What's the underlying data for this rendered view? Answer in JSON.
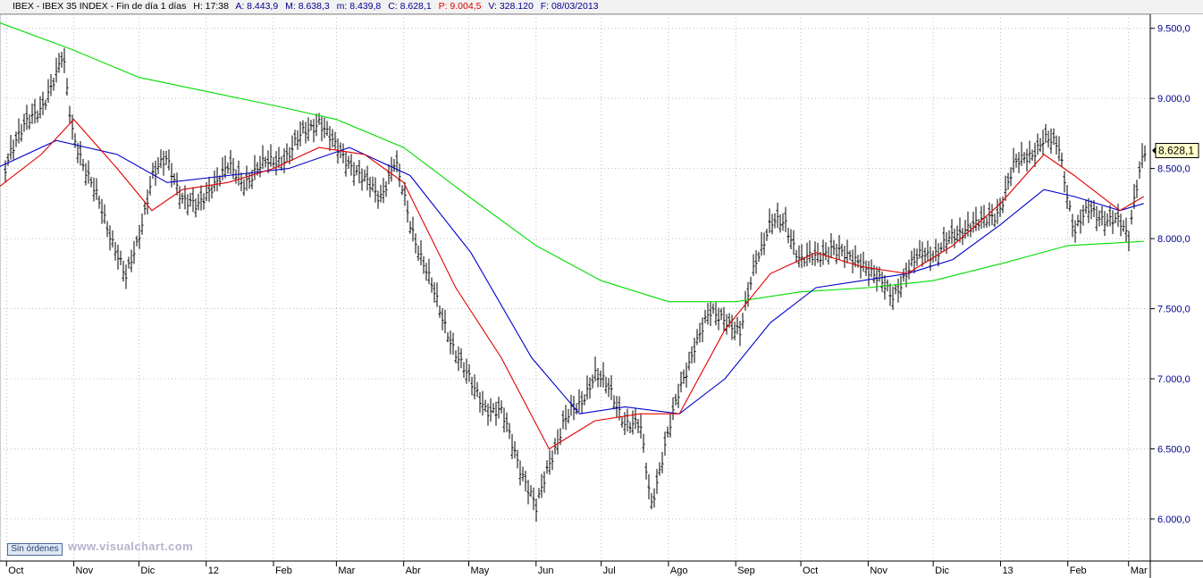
{
  "header": {
    "title": "IBEX - IBEX 35 INDEX - Fin de día 1 días",
    "h": "H: 17:38",
    "a": "A: 8.443,9",
    "m": "M: 8.638,3",
    "mm": "m: 8.439,8",
    "c": "C: 8.628,1",
    "p": "P: 9.004,5",
    "v": "V: 328.120",
    "f": "F: 08/03/2013"
  },
  "sin_ordenes": "Sin órdenes",
  "watermark": "www.visualchart.com",
  "colors": {
    "ma_short": "#e00000",
    "ma_medium": "#0000cc",
    "ma_long": "#00dd00",
    "price_bars": "#000000",
    "grid": "#bcbcbc",
    "axis_text": "#00008b",
    "last_price_box": "#ffffcc"
  },
  "chart_data": {
    "type": "line",
    "style": "ohlc-bars",
    "instrument": "IBEX 35 INDEX",
    "y_unit": "index points",
    "ylim": [
      5700,
      9600
    ],
    "y_ticks": [
      6000,
      6500,
      7000,
      7500,
      8000,
      8500,
      9000,
      9500
    ],
    "y_tick_labels": [
      "6.000,0",
      "6.500,0",
      "7.000,0",
      "7.500,0",
      "8.000,0",
      "8.500,0",
      "9.000,0",
      "9.500,0"
    ],
    "x_tick_labels": [
      "Oct",
      "Nov",
      "Dic",
      "12",
      "Feb",
      "Mar",
      "Abr",
      "May",
      "Jun",
      "Jul",
      "Ago",
      "Sep",
      "Oct",
      "Nov",
      "Dic",
      "13",
      "Feb",
      "Mar"
    ],
    "x_tick_dates": [
      "2011-10-01",
      "2011-11-01",
      "2011-12-01",
      "2012-01-01",
      "2012-02-01",
      "2012-03-01",
      "2012-04-01",
      "2012-05-01",
      "2012-06-01",
      "2012-07-01",
      "2012-08-01",
      "2012-09-01",
      "2012-10-01",
      "2012-11-01",
      "2012-12-01",
      "2013-01-01",
      "2013-02-01",
      "2013-03-01"
    ],
    "last_price_label": "8.628,1",
    "last_price": 8628.1,
    "grid": true,
    "series": [
      {
        "key": "price",
        "dates": [
          "2011-09-26",
          "2011-10-03",
          "2011-10-10",
          "2011-10-17",
          "2011-10-24",
          "2011-10-27",
          "2011-10-31",
          "2011-11-07",
          "2011-11-14",
          "2011-11-21",
          "2011-11-25",
          "2011-11-30",
          "2011-12-07",
          "2011-12-14",
          "2011-12-21",
          "2011-12-28",
          "2012-01-04",
          "2012-01-11",
          "2012-01-18",
          "2012-01-25",
          "2012-02-01",
          "2012-02-08",
          "2012-02-15",
          "2012-02-22",
          "2012-02-29",
          "2012-03-07",
          "2012-03-14",
          "2012-03-21",
          "2012-03-28",
          "2012-04-04",
          "2012-04-11",
          "2012-04-18",
          "2012-04-25",
          "2012-05-02",
          "2012-05-09",
          "2012-05-16",
          "2012-05-23",
          "2012-05-30",
          "2012-06-01",
          "2012-06-07",
          "2012-06-14",
          "2012-06-21",
          "2012-06-28",
          "2012-07-05",
          "2012-07-12",
          "2012-07-19",
          "2012-07-24",
          "2012-07-30",
          "2012-08-06",
          "2012-08-13",
          "2012-08-20",
          "2012-08-27",
          "2012-09-03",
          "2012-09-10",
          "2012-09-17",
          "2012-09-24",
          "2012-10-01",
          "2012-10-08",
          "2012-10-15",
          "2012-10-22",
          "2012-10-29",
          "2012-11-05",
          "2012-11-12",
          "2012-11-19",
          "2012-11-26",
          "2012-12-03",
          "2012-12-10",
          "2012-12-17",
          "2012-12-24",
          "2012-12-31",
          "2013-01-07",
          "2013-01-14",
          "2013-01-21",
          "2013-01-28",
          "2013-02-04",
          "2013-02-11",
          "2013-02-18",
          "2013-02-25",
          "2013-03-01",
          "2013-03-04",
          "2013-03-08"
        ],
        "values": [
          8300,
          8650,
          8800,
          8950,
          9150,
          9300,
          8800,
          8450,
          8200,
          7900,
          7700,
          7950,
          8450,
          8550,
          8300,
          8200,
          8400,
          8500,
          8400,
          8500,
          8550,
          8600,
          8750,
          8850,
          8650,
          8550,
          8400,
          8300,
          8550,
          8100,
          7800,
          7450,
          7200,
          6950,
          6800,
          6750,
          6450,
          6150,
          6050,
          6400,
          6700,
          6800,
          7050,
          6900,
          6700,
          6650,
          6100,
          6500,
          6900,
          7250,
          7450,
          7450,
          7300,
          7850,
          8100,
          8100,
          7850,
          7850,
          7950,
          7850,
          7850,
          7700,
          7600,
          7750,
          7900,
          7900,
          8000,
          8100,
          8100,
          8200,
          8500,
          8600,
          8700,
          8650,
          8050,
          8200,
          8150,
          8100,
          8000,
          8350,
          8628
        ]
      },
      {
        "key": "ma_short",
        "dates": [
          "2011-09-26",
          "2011-10-17",
          "2011-11-01",
          "2011-11-21",
          "2011-12-07",
          "2011-12-21",
          "2012-01-11",
          "2012-02-01",
          "2012-02-22",
          "2012-03-14",
          "2012-04-01",
          "2012-04-25",
          "2012-05-16",
          "2012-06-07",
          "2012-06-28",
          "2012-07-19",
          "2012-08-06",
          "2012-08-27",
          "2012-09-17",
          "2012-10-08",
          "2012-10-29",
          "2012-11-19",
          "2012-12-10",
          "2013-01-01",
          "2013-01-21",
          "2013-02-04",
          "2013-02-25",
          "2013-03-08"
        ],
        "values": [
          8350,
          8600,
          8850,
          8500,
          8200,
          8350,
          8400,
          8500,
          8650,
          8600,
          8400,
          7650,
          7150,
          6500,
          6700,
          6750,
          6750,
          7350,
          7750,
          7900,
          7800,
          7750,
          7950,
          8250,
          8600,
          8450,
          8200,
          8300
        ]
      },
      {
        "key": "ma_medium",
        "dates": [
          "2011-09-26",
          "2011-10-24",
          "2011-11-21",
          "2011-12-14",
          "2012-01-11",
          "2012-02-08",
          "2012-03-07",
          "2012-04-04",
          "2012-05-02",
          "2012-05-30",
          "2012-06-21",
          "2012-07-12",
          "2012-08-06",
          "2012-08-27",
          "2012-09-17",
          "2012-10-08",
          "2012-10-29",
          "2012-11-19",
          "2012-12-10",
          "2013-01-01",
          "2013-01-21",
          "2013-02-04",
          "2013-02-25",
          "2013-03-08"
        ],
        "values": [
          8500,
          8700,
          8600,
          8400,
          8450,
          8500,
          8650,
          8450,
          7900,
          7150,
          6750,
          6800,
          6750,
          7000,
          7400,
          7650,
          7700,
          7750,
          7850,
          8100,
          8350,
          8300,
          8200,
          8250
        ]
      },
      {
        "key": "ma_long",
        "dates": [
          "2011-09-26",
          "2011-10-31",
          "2011-12-01",
          "2012-01-01",
          "2012-02-01",
          "2012-03-01",
          "2012-04-01",
          "2012-05-01",
          "2012-06-01",
          "2012-07-01",
          "2012-08-01",
          "2012-09-01",
          "2012-10-01",
          "2012-11-01",
          "2012-12-01",
          "2013-01-01",
          "2013-02-01",
          "2013-03-08"
        ],
        "values": [
          9550,
          9350,
          9150,
          9050,
          8950,
          8850,
          8650,
          8300,
          7950,
          7700,
          7550,
          7550,
          7620,
          7650,
          7700,
          7820,
          7950,
          7980
        ]
      }
    ]
  }
}
